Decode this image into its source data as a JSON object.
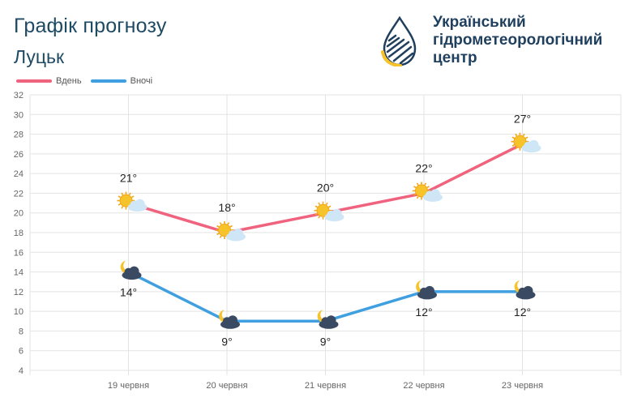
{
  "header": {
    "title": "Графік прогнозу",
    "city": "Луцьк"
  },
  "org": {
    "line1": "Український",
    "line2": "гідрометеорологічний",
    "line3": "центр"
  },
  "colors": {
    "day": "#f0637f",
    "night": "#3f9fe0",
    "grid": "#e3e3e3",
    "brand": "#1f3f5e",
    "sun": "#f7c32b",
    "cloud": "#cfe6f7",
    "night_cloud": "#3b4a63"
  },
  "chart_data": {
    "type": "line",
    "categories": [
      "19 червня",
      "20 червня",
      "21 червня",
      "22 червня",
      "23 червня"
    ],
    "series": [
      {
        "name": "Вдень",
        "values": [
          21,
          18,
          20,
          22,
          27
        ],
        "labels": [
          "21°",
          "18°",
          "20°",
          "22°",
          "27°"
        ],
        "icon": "sun-cloud-icon"
      },
      {
        "name": "Вночі",
        "values": [
          14,
          9,
          9,
          12,
          12
        ],
        "labels": [
          "14°",
          "9°",
          "9°",
          "12°",
          "12°"
        ],
        "icon": "moon-cloud-icon"
      }
    ],
    "ylim": [
      4,
      32
    ],
    "yticks": [
      4,
      6,
      8,
      10,
      12,
      14,
      16,
      18,
      20,
      22,
      24,
      26,
      28,
      30,
      32
    ],
    "grid": true,
    "legend": "top-left"
  }
}
